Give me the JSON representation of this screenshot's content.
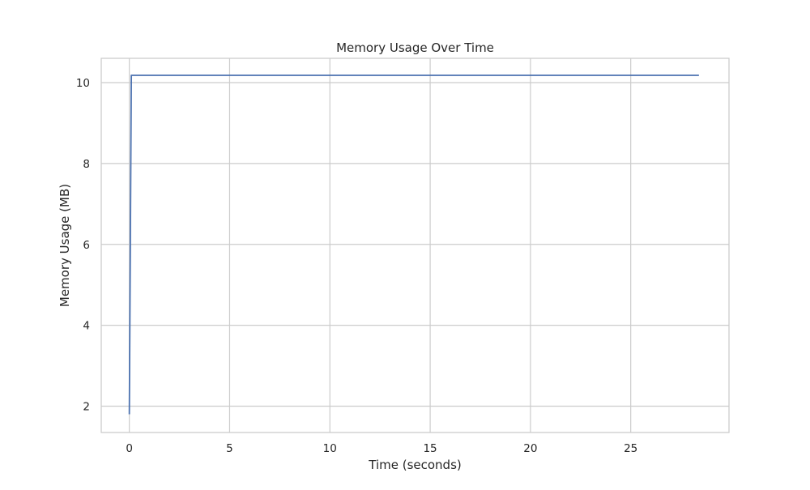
{
  "chart_data": {
    "type": "line",
    "title": "Memory Usage Over Time",
    "xlabel": "Time (seconds)",
    "ylabel": "Memory Usage (MB)",
    "xlim": [
      -1.4,
      29.9
    ],
    "ylim": [
      1.35,
      10.6
    ],
    "xticks": [
      0,
      5,
      10,
      15,
      20,
      25
    ],
    "yticks": [
      2,
      4,
      6,
      8,
      10
    ],
    "grid": true,
    "series": [
      {
        "color": "#4c72b0",
        "x": [
          0.0,
          0.1,
          28.4
        ],
        "y": [
          1.8,
          10.18,
          10.18
        ]
      }
    ]
  }
}
